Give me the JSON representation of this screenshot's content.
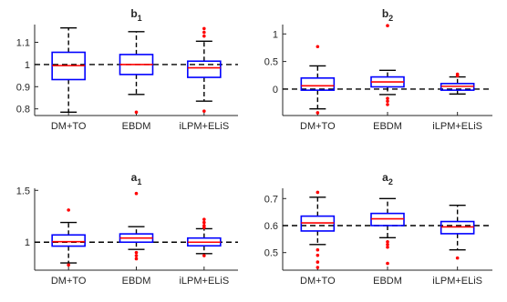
{
  "chart_data": [
    {
      "type": "boxplot",
      "title": "b",
      "title_sub": "1",
      "categories": [
        "DM+TO",
        "EBDM",
        "iLPM+ELiS"
      ],
      "ylim": [
        0.77,
        1.18
      ],
      "yticks": [
        0.8,
        0.9,
        1,
        1.1
      ],
      "yticklabels": [
        "0.8",
        "0.9",
        "1",
        "1.1"
      ],
      "reference_line": 1,
      "boxes": [
        {
          "whisker_low": 0.785,
          "q1": 0.932,
          "median": 0.995,
          "q3": 1.055,
          "whisker_high": 1.165,
          "outliers": []
        },
        {
          "whisker_low": 0.865,
          "q1": 0.955,
          "median": 1.0,
          "q3": 1.045,
          "whisker_high": 1.148,
          "outliers": [
            0.785
          ]
        },
        {
          "whisker_low": 0.835,
          "q1": 0.942,
          "median": 0.985,
          "q3": 1.015,
          "whisker_high": 1.105,
          "outliers": [
            1.162,
            1.145,
            1.128,
            0.79
          ]
        }
      ]
    },
    {
      "type": "boxplot",
      "title": "b",
      "title_sub": "2",
      "categories": [
        "DM+TO",
        "EBDM",
        "iLPM+ELiS"
      ],
      "ylim": [
        -0.48,
        1.17
      ],
      "yticks": [
        0,
        0.5,
        1
      ],
      "yticklabels": [
        "0",
        "0.5",
        "1"
      ],
      "reference_line": 0,
      "boxes": [
        {
          "whisker_low": -0.36,
          "q1": -0.02,
          "median": 0.06,
          "q3": 0.2,
          "whisker_high": 0.42,
          "outliers": [
            0.77,
            -0.43
          ]
        },
        {
          "whisker_low": -0.1,
          "q1": 0.04,
          "median": 0.13,
          "q3": 0.22,
          "whisker_high": 0.34,
          "outliers": [
            1.15,
            -0.17,
            -0.22,
            -0.28
          ]
        },
        {
          "whisker_low": -0.09,
          "q1": -0.02,
          "median": 0.05,
          "q3": 0.1,
          "whisker_high": 0.22,
          "outliers": [
            0.27,
            0.24
          ]
        }
      ]
    },
    {
      "type": "boxplot",
      "title": "a",
      "title_sub": "1",
      "categories": [
        "DM+TO",
        "EBDM",
        "iLPM+ELiS"
      ],
      "ylim": [
        0.73,
        1.52
      ],
      "yticks": [
        1,
        1.5
      ],
      "yticklabels": [
        "1",
        "1.5"
      ],
      "reference_line": 1,
      "boxes": [
        {
          "whisker_low": 0.8,
          "q1": 0.962,
          "median": 1.005,
          "q3": 1.07,
          "whisker_high": 1.19,
          "outliers": [
            1.31,
            0.78
          ]
        },
        {
          "whisker_low": 0.93,
          "q1": 1.0,
          "median": 1.04,
          "q3": 1.08,
          "whisker_high": 1.15,
          "outliers": [
            1.47,
            0.9,
            0.87,
            0.84
          ]
        },
        {
          "whisker_low": 0.89,
          "q1": 0.965,
          "median": 1.0,
          "q3": 1.04,
          "whisker_high": 1.13,
          "outliers": [
            1.22,
            1.19,
            1.16,
            1.14,
            0.87
          ]
        }
      ]
    },
    {
      "type": "boxplot",
      "title": "a",
      "title_sub": "2",
      "categories": [
        "DM+TO",
        "EBDM",
        "iLPM+ELiS"
      ],
      "ylim": [
        0.435,
        0.738
      ],
      "yticks": [
        0.5,
        0.6,
        0.7
      ],
      "yticklabels": [
        "0.5",
        "0.6",
        "0.7"
      ],
      "reference_line": 0.6,
      "boxes": [
        {
          "whisker_low": 0.53,
          "q1": 0.58,
          "median": 0.61,
          "q3": 0.635,
          "whisker_high": 0.705,
          "outliers": [
            0.723,
            0.51,
            0.49,
            0.465,
            0.445
          ]
        },
        {
          "whisker_low": 0.555,
          "q1": 0.6,
          "median": 0.625,
          "q3": 0.645,
          "whisker_high": 0.7,
          "outliers": [
            0.54,
            0.53,
            0.52,
            0.46
          ]
        },
        {
          "whisker_low": 0.51,
          "q1": 0.57,
          "median": 0.595,
          "q3": 0.615,
          "whisker_high": 0.675,
          "outliers": [
            0.48
          ]
        }
      ]
    }
  ],
  "colors": {
    "box": "#0000ff",
    "median": "#ff0000",
    "outlier": "#ff0000",
    "whisker": "#000000",
    "reference_line": "#000000",
    "axes": "#262626"
  }
}
